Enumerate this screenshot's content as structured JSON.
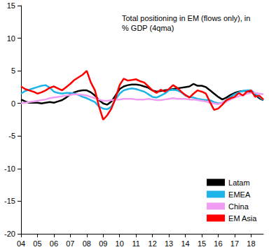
{
  "chart_data": {
    "type": "line",
    "title": "Total positioning in EM (flows only), in % GDP (4qma)",
    "categories": [
      "04",
      null,
      null,
      null,
      "05",
      null,
      null,
      null,
      "06",
      null,
      null,
      null,
      "07",
      null,
      null,
      null,
      "08",
      null,
      null,
      null,
      "09",
      null,
      null,
      null,
      "10",
      null,
      null,
      null,
      "11",
      null,
      null,
      null,
      "12",
      null,
      null,
      null,
      "13",
      null,
      null,
      null,
      "14",
      null,
      null,
      null,
      "15",
      null,
      null,
      null,
      "16",
      null,
      null,
      null,
      "17",
      null,
      null,
      null,
      "18",
      null,
      null,
      null
    ],
    "series": [
      {
        "name": "Latam",
        "color": "#000000",
        "values": [
          0.6,
          0.3,
          0.1,
          0.1,
          0.1,
          0.0,
          0.1,
          0.2,
          0.1,
          0.3,
          0.5,
          0.9,
          1.4,
          1.7,
          1.9,
          2.0,
          2.0,
          1.7,
          1.2,
          0.5,
          0.0,
          -0.2,
          0.3,
          1.2,
          2.2,
          2.6,
          2.8,
          2.9,
          2.9,
          2.8,
          2.6,
          2.4,
          2.0,
          1.8,
          1.9,
          2.0,
          2.1,
          2.2,
          2.3,
          2.4,
          2.5,
          2.6,
          3.0,
          2.7,
          2.7,
          2.5,
          2.0,
          1.5,
          1.0,
          0.6,
          0.9,
          1.3,
          1.6,
          1.8,
          1.9,
          1.9,
          1.8,
          1.3,
          0.8,
          0.5
        ]
      },
      {
        "name": "EMEA",
        "color": "#1fb4e8",
        "values": [
          1.5,
          1.9,
          2.1,
          2.3,
          2.5,
          2.7,
          2.8,
          2.4,
          1.8,
          1.6,
          1.5,
          1.6,
          1.6,
          1.5,
          1.3,
          1.0,
          0.8,
          0.5,
          0.2,
          -0.5,
          -0.8,
          -0.9,
          -0.5,
          0.6,
          1.5,
          2.0,
          2.2,
          2.3,
          2.2,
          2.0,
          1.8,
          1.4,
          1.0,
          0.9,
          1.2,
          1.5,
          2.0,
          2.1,
          2.0,
          1.7,
          1.2,
          1.0,
          0.9,
          0.7,
          0.6,
          0.5,
          0.5,
          0.2,
          0.0,
          0.1,
          0.5,
          1.0,
          1.4,
          1.7,
          1.9,
          2.0,
          2.0,
          1.5,
          1.0,
          0.5
        ]
      },
      {
        "name": "China",
        "color": "#f09cf0",
        "values": [
          0.0,
          0.1,
          0.2,
          0.3,
          0.4,
          0.5,
          0.6,
          0.8,
          0.9,
          1.0,
          1.1,
          1.2,
          1.3,
          1.4,
          1.4,
          1.3,
          1.2,
          1.0,
          0.8,
          0.6,
          0.4,
          0.4,
          0.5,
          0.6,
          0.6,
          0.7,
          0.7,
          0.7,
          0.6,
          0.6,
          0.6,
          0.7,
          0.6,
          0.5,
          0.5,
          0.6,
          0.7,
          0.8,
          0.7,
          0.7,
          0.7,
          0.6,
          0.6,
          0.5,
          0.4,
          0.3,
          0.1,
          0.0,
          -0.1,
          0.1,
          0.3,
          0.6,
          0.9,
          1.1,
          1.3,
          1.5,
          1.6,
          1.6,
          1.5,
          1.4
        ]
      },
      {
        "name": "EM Asia",
        "color": "#ff0000",
        "values": [
          2.6,
          2.2,
          2.0,
          1.8,
          1.5,
          1.7,
          2.0,
          2.4,
          2.6,
          2.3,
          2.0,
          2.5,
          3.0,
          3.6,
          4.0,
          4.4,
          5.0,
          3.2,
          2.0,
          -0.5,
          -2.5,
          -1.8,
          -0.8,
          0.8,
          2.8,
          3.8,
          3.5,
          3.6,
          3.7,
          3.4,
          3.2,
          2.6,
          2.0,
          1.6,
          2.1,
          1.8,
          2.2,
          2.8,
          2.4,
          1.8,
          1.3,
          0.9,
          1.5,
          2.0,
          1.8,
          1.5,
          0.2,
          -1.0,
          -0.8,
          -0.2,
          0.5,
          0.8,
          1.0,
          1.6,
          1.2,
          1.8,
          2.0,
          1.0,
          1.2,
          0.6
        ]
      }
    ],
    "ylim": [
      -20,
      15
    ],
    "yticks": [
      -20,
      -15,
      -10,
      -5,
      0,
      5,
      10,
      15
    ],
    "grid": false,
    "legend": "lower right"
  }
}
